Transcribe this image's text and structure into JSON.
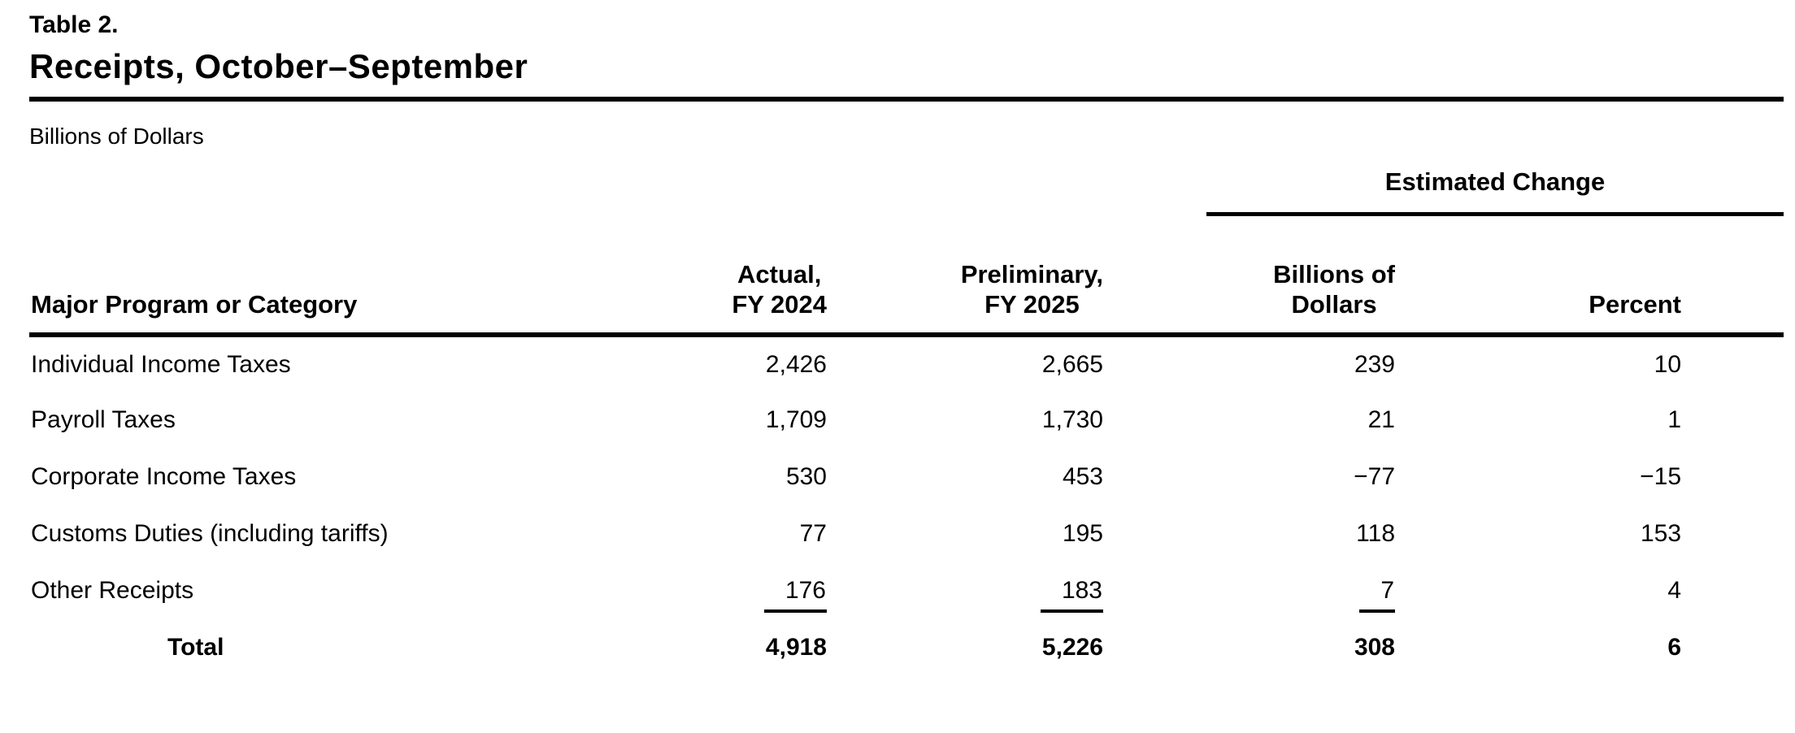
{
  "highlight_color": "#f8e405",
  "colors": {
    "text": "#000000",
    "background": "#ffffff",
    "rule": "#000000"
  },
  "table": {
    "label": "Table 2.",
    "title": "Receipts, October–September",
    "units": "Billions of Dollars",
    "spanner": "Estimated Change",
    "category_header": "Major Program or Category",
    "columns": {
      "fy2024": {
        "line1": "Actual,",
        "line2": "FY 2024"
      },
      "fy2025": {
        "line1": "Preliminary,",
        "line2": "FY 2025"
      },
      "change_billions": {
        "line1": "Billions of",
        "line2": "Dollars"
      },
      "change_percent": "Percent"
    },
    "rows": [
      {
        "category": "Individual Income Taxes",
        "fy2024": "2,426",
        "fy2025": "2,665",
        "change_billions": "239",
        "change_percent": "10"
      },
      {
        "category": "Payroll Taxes",
        "fy2024": "1,709",
        "fy2025": "1,730",
        "change_billions": "21",
        "change_percent": "1"
      },
      {
        "category": "Corporate Income Taxes",
        "fy2024": "530",
        "fy2025": "453",
        "change_billions": "−77",
        "change_percent": "−15"
      },
      {
        "category": "Customs Duties (including tariffs)",
        "fy2024": "77",
        "fy2025": "195",
        "change_billions": "118",
        "change_percent": "153"
      },
      {
        "category": "Other Receipts",
        "fy2024": "176",
        "fy2025": "183",
        "change_billions": "7",
        "change_percent": "4"
      }
    ],
    "total_row": {
      "category": "Total",
      "fy2024": "4,918",
      "fy2025": "5,226",
      "change_billions": "308",
      "change_percent": "6"
    }
  }
}
